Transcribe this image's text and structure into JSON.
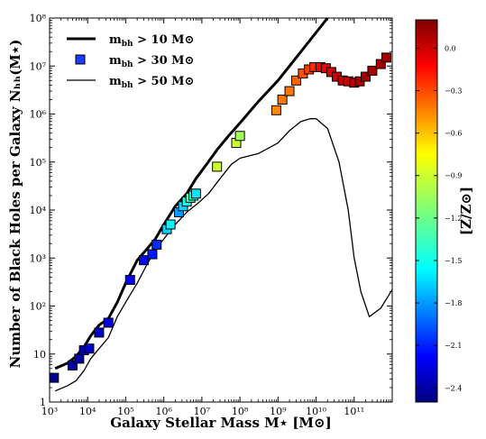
{
  "chart_data": {
    "type": "line",
    "xlabel": "Galaxy Stellar Mass M⋆ [M⊙]",
    "ylabel": "Number of Black Holes per Galaxy Nₕₕ(M⋆)",
    "xscale": "log",
    "yscale": "log",
    "xlim": [
      1000,
      1000000000000.0
    ],
    "ylim": [
      1,
      100000000.0
    ],
    "x_ticks": [
      {
        "value": 1000.0,
        "label": "10³"
      },
      {
        "value": 10000.0,
        "label": "10⁴"
      },
      {
        "value": 100000.0,
        "label": "10⁵"
      },
      {
        "value": 1000000.0,
        "label": "10⁶"
      },
      {
        "value": 10000000.0,
        "label": "10⁷"
      },
      {
        "value": 100000000.0,
        "label": "10⁸"
      },
      {
        "value": 1000000000.0,
        "label": "10⁹"
      },
      {
        "value": 10000000000.0,
        "label": "10¹⁰"
      },
      {
        "value": 100000000000.0,
        "label": "10¹¹"
      }
    ],
    "y_ticks": [
      {
        "value": 1,
        "label": "1"
      },
      {
        "value": 10,
        "label": "10"
      },
      {
        "value": 100,
        "label": "10²"
      },
      {
        "value": 1000,
        "label": "10³"
      },
      {
        "value": 10000,
        "label": "10⁴"
      },
      {
        "value": 100000,
        "label": "10⁵"
      },
      {
        "value": 1000000.0,
        "label": "10⁶"
      },
      {
        "value": 10000000.0,
        "label": "10⁷"
      },
      {
        "value": 100000000.0,
        "label": "10⁸"
      }
    ],
    "legend": {
      "placement": "upper-left",
      "entries": [
        {
          "label": "m_bh > 10 M⊙",
          "sym": "m",
          "sub": "bh",
          "rest": " > 10 M⊙",
          "style": "thick-line"
        },
        {
          "label": "m_bh > 30 M⊙",
          "sym": "m",
          "sub": "bh",
          "rest": " > 30 M⊙",
          "style": "square"
        },
        {
          "label": "m_bh > 50 M⊙",
          "sym": "m",
          "sub": "bh",
          "rest": " > 50 M⊙",
          "style": "thin-line"
        }
      ]
    },
    "series": [
      {
        "name": "m_bh > 10 M⊙",
        "kind": "line",
        "stroke": "#000000",
        "width": 3,
        "x": [
          1400.0,
          3000.0,
          5000.0,
          8000.0,
          12000.0,
          20000.0,
          35000.0,
          60000.0,
          100000.0,
          200000.0,
          350000.0,
          600000.0,
          1000000.0,
          2000000.0,
          4000000.0,
          7000000.0,
          12000000.0,
          25000000.0,
          50000000.0,
          100000000.0,
          300000000.0,
          1000000000.0,
          3000000000.0,
          10000000000.0,
          20000000000.0
        ],
        "y": [
          5,
          6.5,
          9,
          14,
          24,
          40,
          55,
          120,
          300,
          900,
          1500,
          2500,
          5000,
          12000,
          22000,
          45000,
          80000,
          180000,
          350000,
          650000,
          1800000,
          5000000,
          15000000,
          50000000,
          100000000.0
        ]
      },
      {
        "name": "m_bh > 50 M⊙",
        "kind": "line",
        "stroke": "#000000",
        "width": 1.3,
        "x": [
          1400.0,
          3000.0,
          5000.0,
          8000.0,
          12000.0,
          20000.0,
          35000.0,
          60000.0,
          100000.0,
          200000.0,
          350000.0,
          600000.0,
          1000000.0,
          2000000.0,
          4000000.0,
          8000000.0,
          15000000.0,
          30000000.0,
          60000000.0,
          100000000.0,
          300000000.0,
          600000000.0,
          1000000000.0,
          2000000000.0,
          4000000000.0,
          7000000000.0,
          10000000000.0,
          20000000000.0,
          40000000000.0,
          70000000000.0,
          100000000000.0,
          150000000000.0,
          250000000000.0,
          500000000000.0,
          1000000000000.0
        ],
        "y": [
          1.7,
          2.2,
          2.8,
          4.5,
          8,
          13,
          22,
          60,
          120,
          300,
          700,
          1500,
          2500,
          5000,
          9000,
          14000,
          22000,
          45000,
          90000,
          120000,
          150000,
          200000,
          250000,
          450000,
          700000,
          800000,
          800000,
          500000,
          100000,
          10000,
          1000,
          200,
          60,
          90,
          220
        ]
      }
    ],
    "scatter": {
      "name": "m_bh > 30 M⊙",
      "color_label": "[Z/Z⊙]",
      "points": [
        {
          "x": 1300.0,
          "y": 3.2,
          "z": -2.45
        },
        {
          "x": 4000.0,
          "y": 5.8,
          "z": -2.4
        },
        {
          "x": 6000.0,
          "y": 8,
          "z": -2.38
        },
        {
          "x": 8000.0,
          "y": 12,
          "z": -2.35
        },
        {
          "x": 11000.0,
          "y": 13,
          "z": -2.3
        },
        {
          "x": 20000.0,
          "y": 28,
          "z": -2.3
        },
        {
          "x": 35000.0,
          "y": 45,
          "z": -2.25
        },
        {
          "x": 130000.0,
          "y": 350,
          "z": -2.2
        },
        {
          "x": 300000.0,
          "y": 900,
          "z": -2.15
        },
        {
          "x": 500000.0,
          "y": 1200,
          "z": -2.1
        },
        {
          "x": 650000.0,
          "y": 1900,
          "z": -2.05
        },
        {
          "x": 1200000.0,
          "y": 4000,
          "z": -1.6
        },
        {
          "x": 1500000.0,
          "y": 5000,
          "z": -1.5
        },
        {
          "x": 2500000.0,
          "y": 9000,
          "z": -1.75
        },
        {
          "x": 3200000.0,
          "y": 12000,
          "z": -1.6
        },
        {
          "x": 4000000.0,
          "y": 15000,
          "z": -1.45
        },
        {
          "x": 5000000.0,
          "y": 18000,
          "z": -1.3
        },
        {
          "x": 6000000.0,
          "y": 20000,
          "z": -1.4
        },
        {
          "x": 7000000.0,
          "y": 22000,
          "z": -1.55
        },
        {
          "x": 25000000.0,
          "y": 80000,
          "z": -0.95
        },
        {
          "x": 80000000.0,
          "y": 250000,
          "z": -0.95
        },
        {
          "x": 100000000.0,
          "y": 350000,
          "z": -1.05
        },
        {
          "x": 900000000.0,
          "y": 1200000,
          "z": -0.5
        },
        {
          "x": 1300000000.0,
          "y": 2000000,
          "z": -0.45
        },
        {
          "x": 2000000000.0,
          "y": 3000000,
          "z": -0.45
        },
        {
          "x": 3000000000.0,
          "y": 5000000,
          "z": -0.4
        },
        {
          "x": 4500000000.0,
          "y": 7000000,
          "z": -0.35
        },
        {
          "x": 6500000000.0,
          "y": 8500000,
          "z": -0.3
        },
        {
          "x": 9000000000.0,
          "y": 9500000,
          "z": -0.25
        },
        {
          "x": 13000000000.0,
          "y": 9500000,
          "z": -0.15
        },
        {
          "x": 18000000000.0,
          "y": 9000000,
          "z": -0.1
        },
        {
          "x": 25000000000.0,
          "y": 7500000,
          "z": -0.05
        },
        {
          "x": 35000000000.0,
          "y": 6000000,
          "z": -0.02
        },
        {
          "x": 50000000000.0,
          "y": 5000000,
          "z": 0.0
        },
        {
          "x": 70000000000.0,
          "y": 4800000,
          "z": 0.0
        },
        {
          "x": 100000000000.0,
          "y": 4500000,
          "z": 0.05
        },
        {
          "x": 140000000000.0,
          "y": 4800000,
          "z": 0.08
        },
        {
          "x": 200000000000.0,
          "y": 6000000,
          "z": 0.1
        },
        {
          "x": 300000000000.0,
          "y": 8000000,
          "z": 0.1
        },
        {
          "x": 500000000000.0,
          "y": 11000000,
          "z": 0.1
        },
        {
          "x": 700000000000.0,
          "y": 15000000,
          "z": 0.12
        }
      ]
    },
    "colorbar": {
      "label": "[Z/Z⊙]",
      "min": -2.5,
      "max": 0.2,
      "ticks": [
        0.0,
        -0.3,
        -0.6,
        -0.9,
        -1.2,
        -1.5,
        -1.8,
        -2.1,
        -2.4
      ],
      "tick_labels": [
        "0.0",
        "−0.3",
        "−0.6",
        "−0.9",
        "−1.2",
        "−1.5",
        "−1.8",
        "−2.1",
        "−2.4"
      ],
      "colormap": "jet"
    }
  }
}
